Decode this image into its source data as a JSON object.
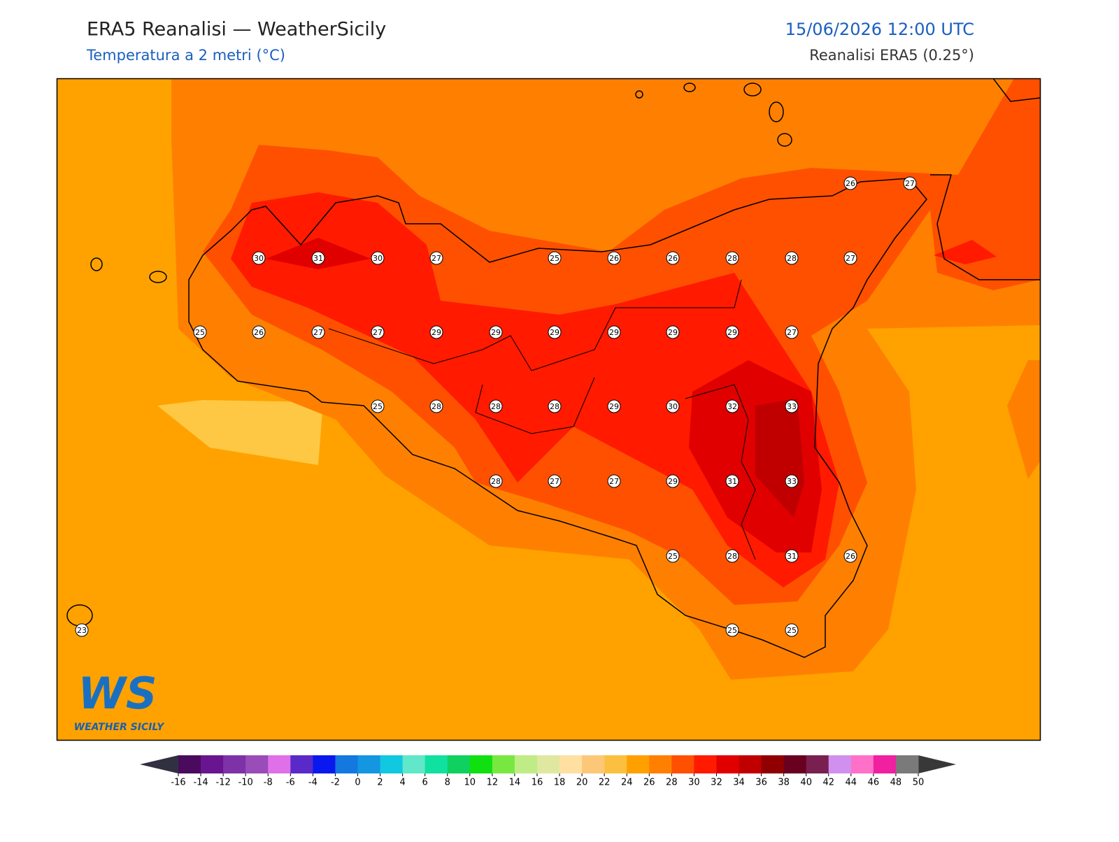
{
  "header": {
    "title": "ERA5 Reanalisi — WeatherSicily",
    "subtitle": "Temperatura a 2 metri (°C)",
    "datetime": "15/06/2026 12:00 UTC",
    "source": "Reanalisi ERA5 (0.25°)"
  },
  "stations": [
    26,
    27,
    30,
    31,
    30,
    27,
    25,
    26,
    26,
    28,
    28,
    27,
    25,
    26,
    27,
    27,
    29,
    29,
    29,
    29,
    29,
    29,
    27,
    25,
    28,
    28,
    28,
    29,
    30,
    32,
    33,
    28,
    27,
    27,
    29,
    31,
    33,
    25,
    28,
    31,
    26,
    23,
    25,
    25
  ],
  "logo": {
    "mark": "WS",
    "text": "WEATHER SICILY"
  },
  "colorbar": {
    "ticks": [
      -16,
      -14,
      -12,
      -10,
      -8,
      -6,
      -4,
      -2,
      0,
      2,
      4,
      6,
      8,
      10,
      12,
      14,
      16,
      18,
      20,
      22,
      24,
      26,
      28,
      30,
      32,
      34,
      36,
      38,
      40,
      42,
      44,
      46,
      48,
      50
    ],
    "colors": [
      "#4a0a5e",
      "#6a1590",
      "#7e32a8",
      "#9a4cb8",
      "#e070e8",
      "#5a2ac8",
      "#0a18f0",
      "#1478e0",
      "#1496e0",
      "#10c8e0",
      "#60e8c8",
      "#10e0a0",
      "#10d060",
      "#10e010",
      "#78e840",
      "#c0ec88",
      "#e0e8a0",
      "#ffe0a0",
      "#fcc878",
      "#fcc040",
      "#ffa000",
      "#ff8000",
      "#ff5000",
      "#ff1a00",
      "#e00000",
      "#c00000",
      "#900000",
      "#6a0020",
      "#7a2050",
      "#d090f0",
      "#ff70c8",
      "#f020a0",
      "#7a7a7a"
    ],
    "under": "#303040",
    "over": "#383838"
  }
}
